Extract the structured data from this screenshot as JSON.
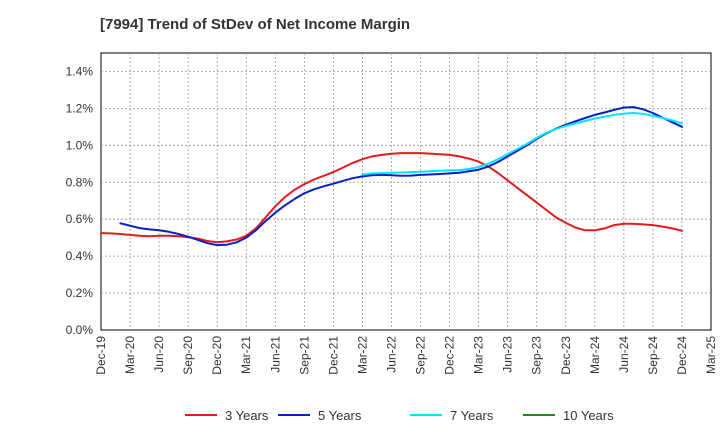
{
  "chart_data": {
    "type": "line",
    "title": "[7994]  Trend of StDev of Net Income Margin",
    "xlabel": "",
    "ylabel": "",
    "x_ticks": [
      "Dec-19",
      "Mar-20",
      "Jun-20",
      "Sep-20",
      "Dec-20",
      "Mar-21",
      "Jun-21",
      "Sep-21",
      "Dec-21",
      "Mar-22",
      "Jun-22",
      "Sep-22",
      "Dec-22",
      "Mar-23",
      "Jun-23",
      "Sep-23",
      "Dec-23",
      "Mar-24",
      "Jun-24",
      "Sep-24",
      "Dec-24",
      "Mar-25"
    ],
    "y_ticks": [
      "0.0%",
      "0.2%",
      "0.4%",
      "0.6%",
      "0.8%",
      "1.0%",
      "1.2%",
      "1.4%"
    ],
    "ylim": [
      0,
      1.5
    ],
    "grid": true,
    "legend_position": "bottom",
    "series": [
      {
        "name": "3 Years",
        "color": "#e41a1c",
        "values": [
          [
            "Dec-19",
            0.525
          ],
          [
            "Jan-20",
            0.523
          ],
          [
            "Feb-20",
            0.52
          ],
          [
            "Mar-20",
            0.515
          ],
          [
            "Apr-20",
            0.51
          ],
          [
            "May-20",
            0.508
          ],
          [
            "Jun-20",
            0.51
          ],
          [
            "Jul-20",
            0.51
          ],
          [
            "Aug-20",
            0.508
          ],
          [
            "Sep-20",
            0.503
          ],
          [
            "Oct-20",
            0.495
          ],
          [
            "Nov-20",
            0.482
          ],
          [
            "Dec-20",
            0.475
          ],
          [
            "Jan-21",
            0.48
          ],
          [
            "Feb-21",
            0.49
          ],
          [
            "Mar-21",
            0.51
          ],
          [
            "Apr-21",
            0.55
          ],
          [
            "May-21",
            0.61
          ],
          [
            "Jun-21",
            0.67
          ],
          [
            "Jul-21",
            0.72
          ],
          [
            "Aug-21",
            0.76
          ],
          [
            "Sep-21",
            0.79
          ],
          [
            "Oct-21",
            0.815
          ],
          [
            "Nov-21",
            0.835
          ],
          [
            "Dec-21",
            0.855
          ],
          [
            "Jan-22",
            0.88
          ],
          [
            "Feb-22",
            0.905
          ],
          [
            "Mar-22",
            0.925
          ],
          [
            "Apr-22",
            0.94
          ],
          [
            "May-22",
            0.948
          ],
          [
            "Jun-22",
            0.954
          ],
          [
            "Jul-22",
            0.958
          ],
          [
            "Aug-22",
            0.958
          ],
          [
            "Sep-22",
            0.958
          ],
          [
            "Oct-22",
            0.955
          ],
          [
            "Nov-22",
            0.952
          ],
          [
            "Dec-22",
            0.948
          ],
          [
            "Jan-23",
            0.94
          ],
          [
            "Feb-23",
            0.928
          ],
          [
            "Mar-23",
            0.912
          ],
          [
            "Apr-23",
            0.885
          ],
          [
            "May-23",
            0.85
          ],
          [
            "Jun-23",
            0.81
          ],
          [
            "Jul-23",
            0.77
          ],
          [
            "Aug-23",
            0.73
          ],
          [
            "Sep-23",
            0.69
          ],
          [
            "Oct-23",
            0.65
          ],
          [
            "Nov-23",
            0.61
          ],
          [
            "Dec-23",
            0.58
          ],
          [
            "Jan-24",
            0.555
          ],
          [
            "Feb-24",
            0.54
          ],
          [
            "Mar-24",
            0.54
          ],
          [
            "Apr-24",
            0.55
          ],
          [
            "May-24",
            0.568
          ],
          [
            "Jun-24",
            0.575
          ],
          [
            "Jul-24",
            0.575
          ],
          [
            "Aug-24",
            0.572
          ],
          [
            "Sep-24",
            0.568
          ],
          [
            "Oct-24",
            0.56
          ],
          [
            "Nov-24",
            0.55
          ],
          [
            "Dec-24",
            0.537
          ]
        ]
      },
      {
        "name": "5 Years",
        "color": "#0a1fcc",
        "values": [
          [
            "Feb-20",
            0.578
          ],
          [
            "Mar-20",
            0.565
          ],
          [
            "Apr-20",
            0.552
          ],
          [
            "May-20",
            0.545
          ],
          [
            "Jun-20",
            0.54
          ],
          [
            "Jul-20",
            0.532
          ],
          [
            "Aug-20",
            0.52
          ],
          [
            "Sep-20",
            0.505
          ],
          [
            "Oct-20",
            0.488
          ],
          [
            "Nov-20",
            0.47
          ],
          [
            "Dec-20",
            0.46
          ],
          [
            "Jan-21",
            0.462
          ],
          [
            "Feb-21",
            0.475
          ],
          [
            "Mar-21",
            0.5
          ],
          [
            "Apr-21",
            0.54
          ],
          [
            "May-21",
            0.59
          ],
          [
            "Jun-21",
            0.635
          ],
          [
            "Jul-21",
            0.675
          ],
          [
            "Aug-21",
            0.71
          ],
          [
            "Sep-21",
            0.74
          ],
          [
            "Oct-21",
            0.762
          ],
          [
            "Nov-21",
            0.778
          ],
          [
            "Dec-21",
            0.792
          ],
          [
            "Jan-22",
            0.808
          ],
          [
            "Feb-22",
            0.822
          ],
          [
            "Mar-22",
            0.832
          ],
          [
            "Apr-22",
            0.838
          ],
          [
            "May-22",
            0.84
          ],
          [
            "Jun-22",
            0.838
          ],
          [
            "Jul-22",
            0.835
          ],
          [
            "Aug-22",
            0.836
          ],
          [
            "Sep-22",
            0.84
          ],
          [
            "Oct-22",
            0.842
          ],
          [
            "Nov-22",
            0.845
          ],
          [
            "Dec-22",
            0.848
          ],
          [
            "Jan-23",
            0.852
          ],
          [
            "Feb-23",
            0.86
          ],
          [
            "Mar-23",
            0.868
          ],
          [
            "Apr-23",
            0.885
          ],
          [
            "May-23",
            0.91
          ],
          [
            "Jun-23",
            0.94
          ],
          [
            "Jul-23",
            0.97
          ],
          [
            "Aug-23",
            1.0
          ],
          [
            "Sep-23",
            1.035
          ],
          [
            "Oct-23",
            1.065
          ],
          [
            "Nov-23",
            1.09
          ],
          [
            "Dec-23",
            1.112
          ],
          [
            "Jan-24",
            1.13
          ],
          [
            "Feb-24",
            1.148
          ],
          [
            "Mar-24",
            1.165
          ],
          [
            "Apr-24",
            1.178
          ],
          [
            "May-24",
            1.192
          ],
          [
            "Jun-24",
            1.205
          ],
          [
            "Jul-24",
            1.207
          ],
          [
            "Aug-24",
            1.195
          ],
          [
            "Sep-24",
            1.175
          ],
          [
            "Oct-24",
            1.15
          ],
          [
            "Nov-24",
            1.125
          ],
          [
            "Dec-24",
            1.1
          ]
        ]
      },
      {
        "name": "7 Years",
        "color": "#00e5ff",
        "values": [
          [
            "Mar-22",
            0.842
          ],
          [
            "Apr-22",
            0.848
          ],
          [
            "May-22",
            0.85
          ],
          [
            "Jun-22",
            0.852
          ],
          [
            "Jul-22",
            0.853
          ],
          [
            "Aug-22",
            0.855
          ],
          [
            "Sep-22",
            0.857
          ],
          [
            "Oct-22",
            0.86
          ],
          [
            "Nov-22",
            0.862
          ],
          [
            "Dec-22",
            0.864
          ],
          [
            "Jan-23",
            0.866
          ],
          [
            "Feb-23",
            0.872
          ],
          [
            "Mar-23",
            0.882
          ],
          [
            "Apr-23",
            0.9
          ],
          [
            "May-23",
            0.925
          ],
          [
            "Jun-23",
            0.953
          ],
          [
            "Jul-23",
            0.98
          ],
          [
            "Aug-23",
            1.008
          ],
          [
            "Sep-23",
            1.04
          ],
          [
            "Oct-23",
            1.068
          ],
          [
            "Nov-23",
            1.088
          ],
          [
            "Dec-23",
            1.105
          ],
          [
            "Jan-24",
            1.118
          ],
          [
            "Feb-24",
            1.132
          ],
          [
            "Mar-24",
            1.145
          ],
          [
            "Apr-24",
            1.155
          ],
          [
            "May-24",
            1.165
          ],
          [
            "Jun-24",
            1.172
          ],
          [
            "Jul-24",
            1.175
          ],
          [
            "Aug-24",
            1.17
          ],
          [
            "Sep-24",
            1.16
          ],
          [
            "Oct-24",
            1.148
          ],
          [
            "Nov-24",
            1.135
          ],
          [
            "Dec-24",
            1.118
          ]
        ]
      },
      {
        "name": "10 Years",
        "color": "#1a8a1a",
        "values": []
      }
    ]
  }
}
